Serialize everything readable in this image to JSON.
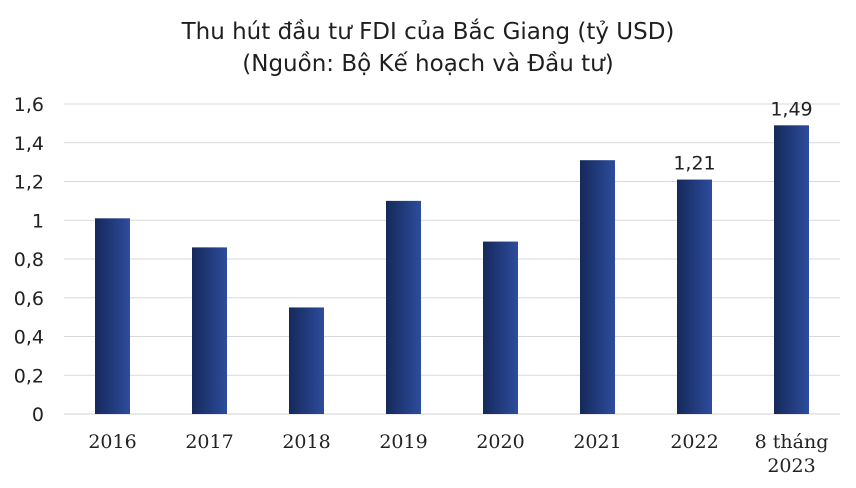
{
  "chart_data": {
    "type": "bar",
    "title": "Thu hút đầu tư FDI của Bắc Giang (tỷ USD)",
    "subtitle": "(Nguồn: Bộ Kế hoạch và Đầu tư)",
    "xlabel": "",
    "ylabel": "",
    "ylim": [
      0,
      1.6
    ],
    "yticks": [
      "0",
      "0,2",
      "0,4",
      "0,6",
      "0,8",
      "1",
      "1,2",
      "1,4",
      "1,6"
    ],
    "grid": true,
    "legend": "none",
    "categories": [
      [
        "2016"
      ],
      [
        "2017"
      ],
      [
        "2018"
      ],
      [
        "2019"
      ],
      [
        "2020"
      ],
      [
        "2021"
      ],
      [
        "2022"
      ],
      [
        "8 tháng",
        "2023"
      ]
    ],
    "values": [
      1.01,
      0.86,
      0.55,
      1.1,
      0.89,
      1.31,
      1.21,
      1.49
    ],
    "data_labels": [
      "",
      "",
      "",
      "",
      "",
      "",
      "1,21",
      "1,49"
    ],
    "colors": {
      "bar_dark": "#15295a",
      "bar_light": "#2d4c9c",
      "grid": "#d9d9d9"
    }
  }
}
